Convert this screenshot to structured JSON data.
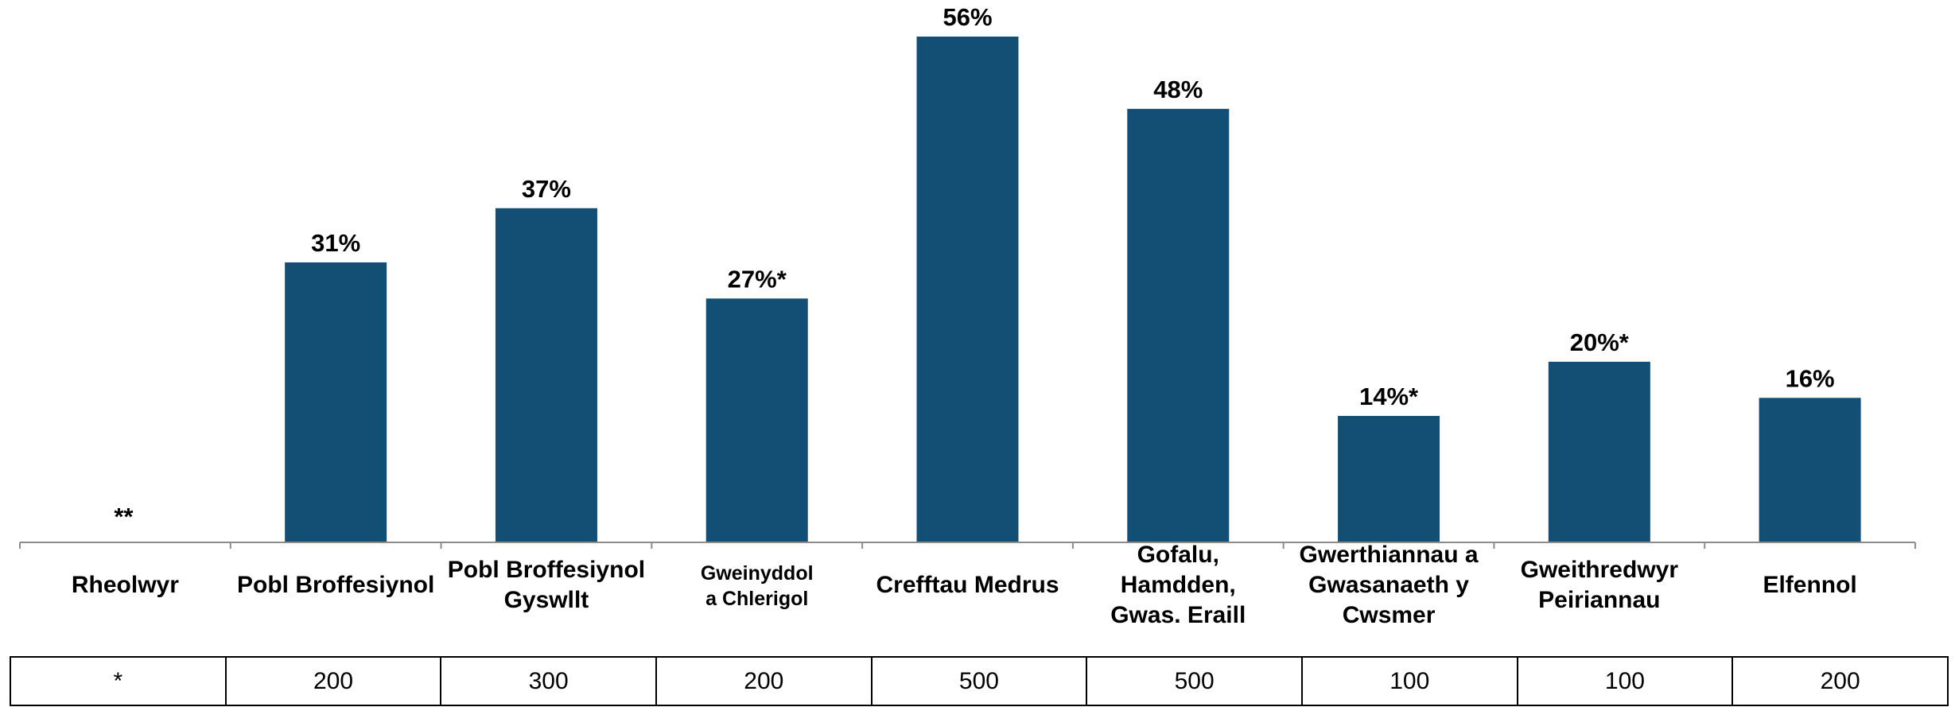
{
  "chart_data": {
    "type": "bar",
    "categories": [
      [
        "Rheolwyr"
      ],
      [
        "Pobl Broffesiynol"
      ],
      [
        "Pobl Broffesiynol",
        "Gyswllt"
      ],
      [
        "Gweinyddol",
        "a Chlerigol"
      ],
      [
        "Crefftau Medrus"
      ],
      [
        "Gofalu,",
        "Hamdden,",
        "Gwas. Eraill"
      ],
      [
        "Gwerthiannau a",
        "Gwasanaeth y",
        "Cwsmer"
      ],
      [
        "Gweithredwyr",
        "Peiriannau"
      ],
      [
        "Elfennol"
      ]
    ],
    "values": [
      null,
      31,
      37,
      27,
      56,
      48,
      14,
      20,
      16
    ],
    "value_labels": [
      "**",
      "31%",
      "37%",
      "27%*",
      "56%",
      "48%",
      "14%*",
      "20%*",
      "16%"
    ],
    "ylim": [
      0,
      60
    ],
    "bar_color": "#134f74",
    "grid": false,
    "counts": [
      "*",
      "200",
      "300",
      "200",
      "500",
      "500",
      "100",
      "100",
      "200"
    ]
  }
}
